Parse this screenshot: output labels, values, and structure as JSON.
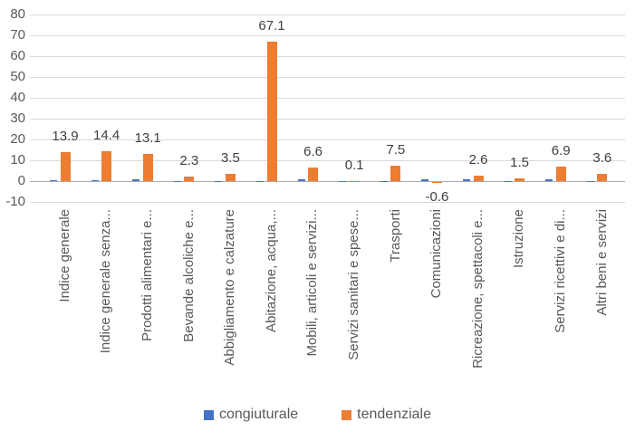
{
  "chart_data": {
    "type": "bar",
    "title": "",
    "xlabel": "",
    "ylabel": "",
    "categories": [
      "Indice generale",
      "Indice generale senza...",
      "Prodotti alimentari e...",
      "Bevande alcoliche e...",
      "Abbigliamento e calzature",
      "Abitazione, acqua,...",
      "Mobili, articoli e servizi...",
      "Servizi sanitari e spese...",
      "Trasporti",
      "Comunicazioni",
      "Ricreazione, spettacoli e...",
      "Istruzione",
      "Servizi ricettivi e di...",
      "Altri beni e servizi"
    ],
    "series": [
      {
        "name": "congiuturale",
        "color": "#4472C4",
        "show_labels": false,
        "values": [
          0.5,
          0.5,
          1.0,
          0.2,
          0.1,
          0.1,
          1.0,
          0.1,
          0.1,
          0.7,
          0.9,
          0.1,
          1.0,
          0.2
        ]
      },
      {
        "name": "tendenziale",
        "color": "#ED7D31",
        "show_labels": true,
        "values": [
          13.9,
          14.4,
          13.1,
          2.3,
          3.5,
          67.1,
          6.6,
          0.1,
          7.5,
          -0.6,
          2.6,
          1.5,
          6.9,
          3.6
        ],
        "labels": [
          "13.9",
          "14.4",
          "13.1",
          "2.3",
          "3.5",
          "67.1",
          "6.6",
          "0.1",
          "7.5",
          "-0.6",
          "2.6",
          "1.5",
          "6.9",
          "3.6"
        ]
      }
    ],
    "ylim": [
      -10,
      80
    ],
    "yticks": [
      80,
      70,
      60,
      50,
      40,
      30,
      20,
      10,
      0,
      -10
    ],
    "grid": "horizontal",
    "legend_position": "bottom"
  },
  "legend": {
    "items": [
      {
        "label": "congiuturale",
        "color": "#4472C4"
      },
      {
        "label": "tendenziale",
        "color": "#ED7D31"
      }
    ]
  },
  "colors": {
    "gridline": "#D9D9D9",
    "axis_line": "#ABABAB",
    "tick_text": "#595959",
    "category_text": "#595959",
    "data_label_text": "#404040",
    "background": "#FFFFFF"
  }
}
